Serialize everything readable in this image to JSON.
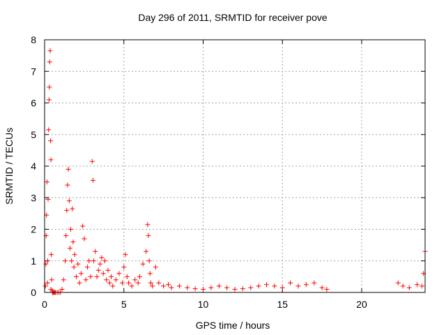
{
  "chart_data": {
    "type": "scatter",
    "title": "Day 296 of 2011, SRMTID for receiver pove",
    "xlabel": "GPS time / hours",
    "ylabel": "SRMTID / TECUs",
    "xlim": [
      0,
      24
    ],
    "ylim": [
      0,
      8
    ],
    "xticks": [
      0,
      5,
      10,
      15,
      20
    ],
    "yticks": [
      0,
      1,
      2,
      3,
      4,
      5,
      6,
      7,
      8
    ],
    "grid": true,
    "marker": "+",
    "color": "#ff0000",
    "series": [
      {
        "name": "SRMTID",
        "x": [
          0.05,
          0.08,
          0.1,
          0.12,
          0.15,
          0.18,
          0.2,
          0.22,
          0.25,
          0.28,
          0.3,
          0.32,
          0.35,
          0.38,
          0.4,
          0.4,
          0.42,
          0.45,
          0.48,
          0.5,
          0.55,
          0.6,
          0.65,
          0.7,
          0.8,
          0.9,
          1.0,
          1.1,
          1.2,
          1.3,
          1.35,
          1.4,
          1.45,
          1.5,
          1.55,
          1.6,
          1.65,
          1.7,
          1.75,
          1.8,
          1.85,
          1.9,
          2.0,
          2.1,
          2.2,
          2.3,
          2.4,
          2.5,
          2.6,
          2.7,
          2.8,
          2.9,
          3.0,
          3.05,
          3.1,
          3.2,
          3.3,
          3.4,
          3.5,
          3.6,
          3.7,
          3.8,
          3.9,
          4.0,
          4.1,
          4.2,
          4.3,
          4.5,
          4.7,
          4.9,
          5.0,
          5.1,
          5.2,
          5.3,
          5.5,
          5.7,
          5.9,
          6.0,
          6.2,
          6.4,
          6.5,
          6.55,
          6.6,
          6.65,
          6.7,
          6.8,
          7.0,
          7.2,
          7.5,
          7.8,
          8.0,
          8.5,
          9.0,
          9.5,
          10.0,
          10.5,
          11.0,
          11.5,
          12.0,
          12.5,
          13.0,
          13.5,
          14.0,
          14.5,
          15.0,
          15.5,
          16.0,
          16.5,
          17.0,
          17.5,
          17.8,
          22.3,
          22.6,
          23.0,
          23.5,
          23.8,
          23.9,
          24.0
        ],
        "y": [
          0.2,
          0.9,
          1.8,
          2.45,
          3.5,
          0.3,
          1.0,
          2.95,
          5.15,
          6.1,
          6.5,
          7.3,
          7.65,
          4.8,
          4.2,
          0.1,
          1.2,
          0.4,
          0.05,
          0.0,
          0.0,
          0.0,
          0.0,
          0.0,
          0.0,
          0.0,
          0.0,
          0.1,
          0.4,
          1.0,
          1.8,
          2.6,
          3.4,
          3.9,
          2.9,
          1.4,
          2.0,
          1.0,
          2.65,
          1.6,
          0.8,
          1.2,
          0.5,
          0.9,
          0.3,
          0.6,
          2.1,
          1.7,
          0.4,
          0.8,
          1.0,
          0.5,
          4.15,
          3.55,
          1.0,
          1.3,
          0.5,
          0.7,
          0.9,
          1.1,
          0.6,
          1.0,
          0.4,
          0.7,
          0.3,
          0.5,
          0.2,
          0.4,
          0.6,
          0.3,
          0.8,
          1.2,
          0.5,
          0.3,
          0.2,
          0.4,
          0.3,
          0.5,
          0.9,
          1.3,
          2.15,
          1.8,
          1.0,
          0.6,
          0.3,
          0.2,
          0.8,
          0.3,
          0.2,
          0.25,
          0.15,
          0.2,
          0.15,
          0.12,
          0.1,
          0.15,
          0.2,
          0.15,
          0.1,
          0.12,
          0.15,
          0.2,
          0.25,
          0.2,
          0.15,
          0.3,
          0.2,
          0.25,
          0.3,
          0.15,
          0.1,
          0.3,
          0.2,
          0.15,
          0.25,
          0.2,
          0.6,
          1.3
        ]
      }
    ]
  }
}
